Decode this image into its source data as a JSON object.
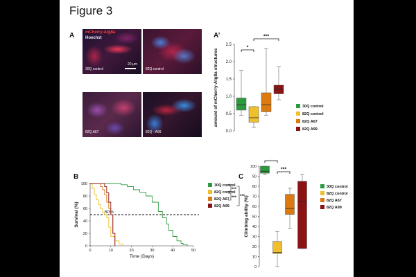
{
  "figure_title": "Figure 3",
  "panels": {
    "A": "A",
    "A_prime": "A’",
    "B": "B",
    "C": "C"
  },
  "microscopy": {
    "stain_red": "mCherry-Atg8a",
    "stain_blue": "Hoechst",
    "scale": "20 μm",
    "images": [
      {
        "label": "30Q control"
      },
      {
        "label": "82Q control"
      },
      {
        "label": "82Q A67"
      },
      {
        "label": "82Q - A99"
      }
    ]
  },
  "legend": {
    "items": [
      {
        "label": "30Q control",
        "color": "#2e9a3e"
      },
      {
        "label": "82Q control",
        "color": "#efc02c"
      },
      {
        "label": "82Q A67",
        "color": "#dc7a12"
      },
      {
        "label": "82Q A99",
        "color": "#8a1414"
      }
    ]
  },
  "chart_data": [
    {
      "type": "box",
      "panel": "A’",
      "ylabel": "amount of mCherry-Atg8a structures",
      "ylim": [
        0,
        2.5
      ],
      "yticks": [
        "0.0",
        "0.5",
        "1.0",
        "1.5",
        "2.0",
        "2.5"
      ],
      "series": [
        {
          "name": "30Q control",
          "min": 0.45,
          "q1": 0.6,
          "median": 0.75,
          "q3": 0.95,
          "max": 1.75
        },
        {
          "name": "82Q control",
          "min": 0.1,
          "q1": 0.25,
          "median": 0.38,
          "q3": 0.7,
          "max": 0.7
        },
        {
          "name": "82Q A67",
          "min": 0.45,
          "q1": 0.55,
          "median": 0.75,
          "q3": 1.1,
          "max": 2.38
        },
        {
          "name": "82Q A99",
          "min": 0.9,
          "q1": 1.07,
          "median": 1.2,
          "q3": 1.32,
          "max": 1.85
        }
      ],
      "significance": [
        {
          "from": 0,
          "to": 1,
          "label": "*"
        },
        {
          "from": 1,
          "to": 3,
          "label": "***"
        }
      ]
    },
    {
      "type": "line",
      "panel": "B",
      "xlabel": "Time (Days)",
      "ylabel": "Survival (%)",
      "xlim": [
        0,
        50
      ],
      "ylim": [
        0,
        100
      ],
      "xticks": [
        "0",
        "10",
        "20",
        "30",
        "40",
        "50"
      ],
      "yticks": [
        "0",
        "20",
        "40",
        "60",
        "80",
        "100"
      ],
      "reference": {
        "y": 50,
        "label": "50%"
      },
      "series": [
        {
          "name": "30Q control",
          "x": [
            0,
            12,
            15,
            18,
            21,
            24,
            27,
            30,
            33,
            35,
            37,
            38,
            40,
            42,
            44,
            45,
            47
          ],
          "y": [
            100,
            100,
            98,
            95,
            90,
            86,
            80,
            70,
            55,
            45,
            35,
            25,
            15,
            8,
            4,
            2,
            0
          ]
        },
        {
          "name": "82Q control",
          "x": [
            0,
            1,
            2,
            3,
            4,
            5,
            6,
            7,
            8,
            9,
            10,
            12,
            14,
            16
          ],
          "y": [
            100,
            92,
            82,
            74,
            66,
            60,
            54,
            50,
            45,
            30,
            15,
            8,
            3,
            0
          ]
        },
        {
          "name": "82Q A67",
          "x": [
            0,
            5,
            6,
            7,
            8,
            9,
            10,
            11,
            12
          ],
          "y": [
            100,
            95,
            90,
            82,
            70,
            60,
            50,
            20,
            0
          ]
        },
        {
          "name": "82Q A99",
          "x": [
            0,
            7,
            8,
            9,
            10,
            11,
            12
          ],
          "y": [
            100,
            95,
            85,
            70,
            50,
            20,
            0
          ]
        }
      ],
      "significance": [
        "***",
        "***",
        "***"
      ]
    },
    {
      "type": "box",
      "panel": "C",
      "ylabel": "Climbing ability (%)",
      "ylim": [
        0,
        100
      ],
      "yticks": [
        "0",
        "10",
        "20",
        "30",
        "40",
        "50",
        "60",
        "70",
        "80",
        "90",
        "100"
      ],
      "series": [
        {
          "name": "30Q control",
          "min": 92,
          "q1": 93,
          "median": 95,
          "q3": 100,
          "max": 100
        },
        {
          "name": "82Q control",
          "min": 0,
          "q1": 13,
          "median": 14,
          "q3": 25,
          "max": 35
        },
        {
          "name": "82Q A67",
          "min": 38,
          "q1": 52,
          "median": 58,
          "q3": 72,
          "max": 78
        },
        {
          "name": "82Q A99",
          "min": 18,
          "q1": 18,
          "median": 65,
          "q3": 85,
          "max": 92
        }
      ],
      "significance": [
        {
          "from": 0,
          "to": 1,
          "label": "***"
        },
        {
          "from": 1,
          "to": 2,
          "label": "***"
        },
        {
          "from": 1,
          "to": 3,
          "label": "*"
        }
      ]
    }
  ]
}
